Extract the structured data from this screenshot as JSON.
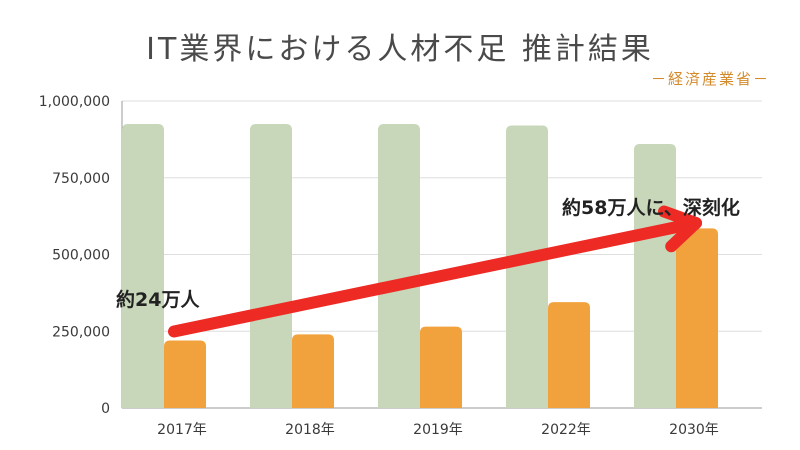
{
  "chart_data": {
    "type": "bar",
    "title": "IT業界における人材不足 推計結果",
    "subtitle": "－経済産業省－",
    "categories": [
      "2017年",
      "2018年",
      "2019年",
      "2022年",
      "2030年"
    ],
    "series": [
      {
        "name": "",
        "values": [
          925000,
          925000,
          925000,
          920000,
          860000
        ],
        "color": "#c8d6b9"
      },
      {
        "name": "",
        "values": [
          220000,
          240000,
          265000,
          345000,
          585000
        ],
        "color": "#f2a23c"
      }
    ],
    "ylim": [
      0,
      1000000
    ],
    "yticks": [
      0,
      250000,
      500000,
      750000,
      1000000
    ],
    "ytick_labels": [
      "0",
      "250,000",
      "500,000",
      "750,000",
      "1,000,000"
    ],
    "grid": true,
    "annotations": {
      "start_label": "約24万人",
      "end_label": "約58万人に、深刻化",
      "arrow_color": "#ee2a24",
      "arrow_from": {
        "category": "2017年",
        "value": 210000
      },
      "arrow_to": {
        "category": "2030年",
        "value": 570000
      }
    }
  }
}
